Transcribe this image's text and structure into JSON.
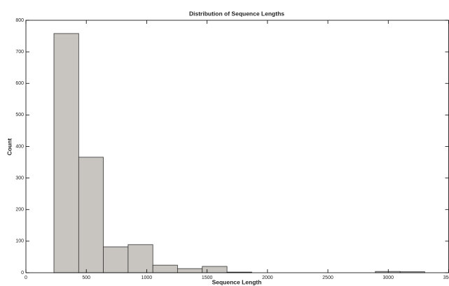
{
  "chart_data": {
    "type": "histogram",
    "title": "Distribution of Sequence Lengths",
    "xlabel": "Sequence Length",
    "ylabel": "Count",
    "bins": [
      232,
      437,
      641,
      846,
      1051,
      1255,
      1460,
      1665,
      1870,
      2074,
      2279,
      2484,
      2688,
      2893,
      3098,
      3302
    ],
    "counts": [
      758,
      366,
      82,
      89,
      24,
      13,
      20,
      2,
      0,
      0,
      0,
      0,
      0,
      4,
      3
    ],
    "color": "#c8c5c0",
    "edgecolor": "#333333",
    "xlim": [
      0,
      3500
    ],
    "xticks": [
      0,
      500,
      1000,
      1500,
      2000,
      2500,
      3000,
      3500
    ],
    "ylim": [
      0,
      800
    ],
    "yticks": [
      0,
      100,
      200,
      300,
      400,
      500,
      600,
      700,
      800
    ]
  }
}
